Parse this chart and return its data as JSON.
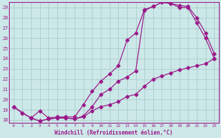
{
  "xlabel": "Windchill (Refroidissement éolien,°C)",
  "bg_color": "#cce8e8",
  "grid_color": "#aacccc",
  "line_color": "#9b1a8a",
  "xlim": [
    -0.5,
    23.5
  ],
  "ylim": [
    17.7,
    29.5
  ],
  "xticks": [
    0,
    1,
    2,
    3,
    4,
    5,
    6,
    7,
    8,
    9,
    10,
    11,
    12,
    13,
    14,
    15,
    16,
    17,
    18,
    19,
    20,
    21,
    22,
    23
  ],
  "yticks": [
    18,
    19,
    20,
    21,
    22,
    23,
    24,
    25,
    26,
    27,
    28,
    29
  ],
  "line1_x": [
    0,
    1,
    2,
    3,
    4,
    5,
    6,
    7,
    8,
    9,
    10,
    11,
    12,
    13,
    14,
    15,
    16,
    17,
    18,
    19,
    20,
    21,
    22,
    23
  ],
  "line1_y": [
    19.3,
    18.7,
    18.2,
    17.9,
    18.1,
    18.2,
    18.2,
    18.1,
    18.4,
    19.3,
    20.5,
    21.0,
    21.8,
    22.2,
    22.8,
    28.7,
    29.1,
    29.5,
    29.4,
    29.0,
    29.0,
    27.5,
    26.0,
    24.0
  ],
  "line2_x": [
    0,
    1,
    2,
    3,
    4,
    5,
    6,
    7,
    8,
    9,
    10,
    11,
    12,
    13,
    14,
    15,
    16,
    17,
    18,
    19,
    20,
    21,
    22,
    23
  ],
  "line2_y": [
    19.3,
    18.7,
    18.2,
    17.9,
    18.1,
    18.2,
    18.2,
    18.1,
    18.3,
    18.9,
    19.3,
    19.5,
    19.8,
    20.3,
    20.5,
    21.3,
    22.0,
    22.3,
    22.6,
    22.9,
    23.1,
    23.3,
    23.5,
    24.0
  ],
  "line3_x": [
    0,
    1,
    2,
    3,
    4,
    5,
    6,
    7,
    8,
    9,
    10,
    11,
    12,
    13,
    14,
    15,
    16,
    17,
    18,
    19,
    20,
    21,
    22,
    23
  ],
  "line3_y": [
    19.3,
    18.7,
    18.2,
    18.9,
    18.2,
    18.3,
    18.3,
    18.3,
    19.5,
    20.8,
    21.8,
    22.5,
    23.3,
    25.8,
    26.5,
    28.8,
    29.1,
    29.5,
    29.4,
    29.2,
    29.1,
    28.0,
    26.5,
    24.5
  ]
}
